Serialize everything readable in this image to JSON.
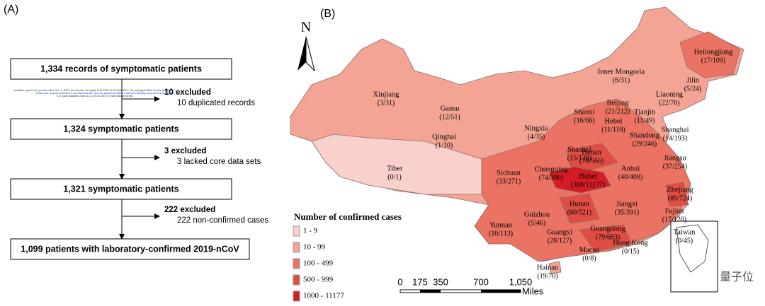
{
  "panel_a": {
    "label": "(A)",
    "steps": [
      "1,334 records of symptomatic patients",
      "1,324 symptomatic patients",
      "1,321 symptomatic patients",
      "1,099 patients with laboratory-confirmed 2019-nCoV"
    ],
    "exclusions": [
      {
        "count": "10 excluded",
        "reason": "10 duplicated records"
      },
      {
        "count": "3 excluded",
        "reason": "3 lacked core data sets"
      },
      {
        "count": "222 excluded",
        "reason": "222 non-confirmed cases"
      }
    ],
    "preprint_note": [
      "medRxiv preprint first posted online Feb. 9, 2020; doi: http://dx.doi.org/10.1101/2020.02.06.20020974. The copyright holder for this preprint",
      "(which was not peer-reviewed) is the author/funder, who has granted medRxiv a license to display the preprint in perpetuity.",
      "It is made available under a CC-BY-NC-ND 4.0 International license."
    ]
  },
  "panel_b": {
    "label": "(B)",
    "north": "N",
    "legend": {
      "title": "Number of confirmed cases",
      "items": [
        {
          "label": "1 - 9",
          "color": "#f9d0cb"
        },
        {
          "label": "10 - 99",
          "color": "#f4a494"
        },
        {
          "label": "100 - 499",
          "color": "#eb7363"
        },
        {
          "label": "500 - 999",
          "color": "#e04e43"
        },
        {
          "label": "1000 - 11177",
          "color": "#d41c24"
        }
      ]
    },
    "scale": {
      "ticks": [
        "0",
        "175",
        "350",
        "700",
        "1,050"
      ],
      "unit": "Miles"
    },
    "provinces": [
      {
        "name": "Xinjiang",
        "cases": "(3/31)"
      },
      {
        "name": "Tibet",
        "cases": "(0/1)"
      },
      {
        "name": "Qinghai",
        "cases": "(1/10)"
      },
      {
        "name": "Gansu",
        "cases": "(12/51)"
      },
      {
        "name": "Inner Mongoria",
        "cases": "(6/31)"
      },
      {
        "name": "Heilongjiang",
        "cases": "(17/109)"
      },
      {
        "name": "Jilin",
        "cases": "(5/24)"
      },
      {
        "name": "Liaoning",
        "cases": "(22/70)"
      },
      {
        "name": "Beijing",
        "cases": "(21/212)"
      },
      {
        "name": "Tianjin",
        "cases": "(11/49)"
      },
      {
        "name": "Hebei",
        "cases": "(11/118)"
      },
      {
        "name": "Shanxi",
        "cases": "(16/66)"
      },
      {
        "name": "Ningxia",
        "cases": "(4/35)"
      },
      {
        "name": "Shandong",
        "cases": "(29/246)"
      },
      {
        "name": "Shanghai",
        "cases": "(14/193)"
      },
      {
        "name": "Shaanxi",
        "cases": "(15/128)"
      },
      {
        "name": "Henan",
        "cases": "(78/566)"
      },
      {
        "name": "Jiangsu",
        "cases": "(37/254)"
      },
      {
        "name": "Anhui",
        "cases": "(40/408)"
      },
      {
        "name": "Hubei",
        "cases": "(308/11177)"
      },
      {
        "name": "Sichuan",
        "cases": "(33/271)"
      },
      {
        "name": "Chongqing",
        "cases": "(74/300)"
      },
      {
        "name": "Zhejiang",
        "cases": "(89/724)"
      },
      {
        "name": "Hunan",
        "cases": "(60/521)"
      },
      {
        "name": "Jiangxi",
        "cases": "(35/391)"
      },
      {
        "name": "Guizhou",
        "cases": "(5/46)"
      },
      {
        "name": "Fujian",
        "cases": "(17/120)"
      },
      {
        "name": "Yunnan",
        "cases": "(10/113)"
      },
      {
        "name": "Guangxi",
        "cases": "(28/127)"
      },
      {
        "name": "Guangdong",
        "cases": "(79/683)"
      },
      {
        "name": "Taiwan",
        "cases": "(0/45)"
      },
      {
        "name": "Hong Kong",
        "cases": "(0/15)"
      },
      {
        "name": "Macao",
        "cases": "(0/8)"
      },
      {
        "name": "Hainan",
        "cases": "(19/70)"
      }
    ],
    "watermark": "量子位"
  }
}
